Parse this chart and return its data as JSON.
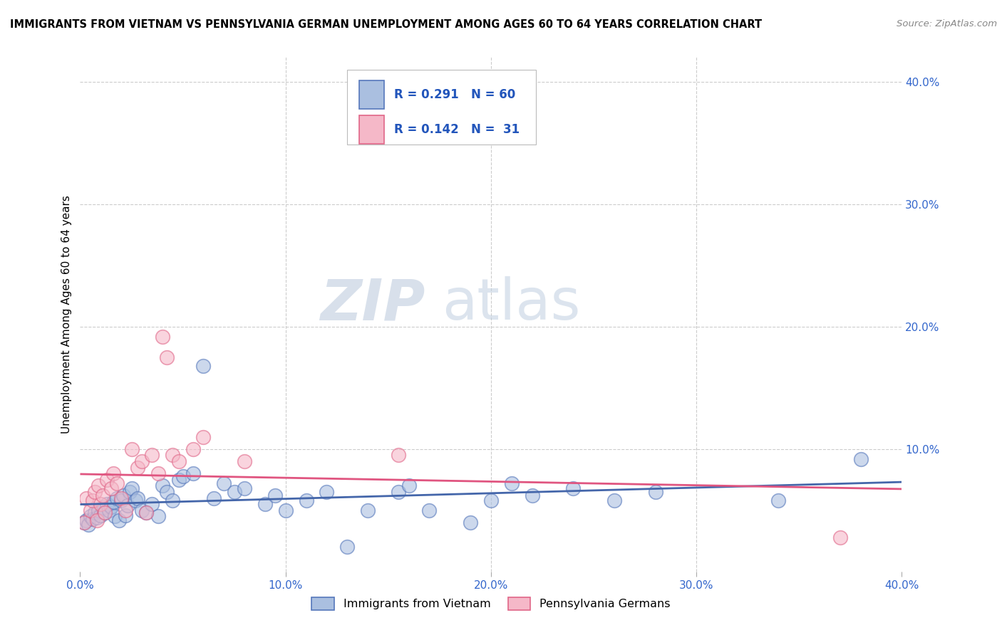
{
  "title": "IMMIGRANTS FROM VIETNAM VS PENNSYLVANIA GERMAN UNEMPLOYMENT AMONG AGES 60 TO 64 YEARS CORRELATION CHART",
  "source": "Source: ZipAtlas.com",
  "ylabel": "Unemployment Among Ages 60 to 64 years",
  "xlim": [
    0.0,
    0.4
  ],
  "ylim": [
    0.0,
    0.42
  ],
  "xticks": [
    0.0,
    0.1,
    0.2,
    0.3,
    0.4
  ],
  "yticks": [
    0.1,
    0.2,
    0.3,
    0.4
  ],
  "xtick_labels": [
    "0.0%",
    "10.0%",
    "20.0%",
    "30.0%",
    "40.0%"
  ],
  "ytick_labels": [
    "10.0%",
    "20.0%",
    "30.0%",
    "40.0%"
  ],
  "background_color": "#ffffff",
  "grid_color": "#cccccc",
  "blue_fill": "#aabfe0",
  "blue_edge": "#5577bb",
  "pink_fill": "#f5b8c8",
  "pink_edge": "#e06688",
  "blue_line_color": "#4466aa",
  "pink_line_color": "#e05580",
  "watermark_zip": "ZIP",
  "watermark_atlas": "atlas",
  "legend_label1": "Immigrants from Vietnam",
  "legend_label2": "Pennsylvania Germans",
  "blue_scatter_x": [
    0.002,
    0.003,
    0.004,
    0.005,
    0.006,
    0.007,
    0.008,
    0.009,
    0.01,
    0.011,
    0.012,
    0.013,
    0.014,
    0.015,
    0.016,
    0.017,
    0.018,
    0.019,
    0.02,
    0.021,
    0.022,
    0.023,
    0.024,
    0.025,
    0.027,
    0.028,
    0.03,
    0.032,
    0.035,
    0.038,
    0.04,
    0.042,
    0.045,
    0.048,
    0.05,
    0.055,
    0.06,
    0.065,
    0.07,
    0.075,
    0.08,
    0.09,
    0.095,
    0.1,
    0.11,
    0.12,
    0.13,
    0.14,
    0.155,
    0.16,
    0.17,
    0.19,
    0.2,
    0.21,
    0.22,
    0.24,
    0.26,
    0.28,
    0.34,
    0.38
  ],
  "blue_scatter_y": [
    0.04,
    0.042,
    0.038,
    0.045,
    0.043,
    0.048,
    0.044,
    0.05,
    0.046,
    0.052,
    0.048,
    0.055,
    0.05,
    0.053,
    0.057,
    0.045,
    0.06,
    0.042,
    0.058,
    0.062,
    0.046,
    0.054,
    0.065,
    0.068,
    0.058,
    0.06,
    0.05,
    0.048,
    0.055,
    0.045,
    0.07,
    0.065,
    0.058,
    0.075,
    0.078,
    0.08,
    0.168,
    0.06,
    0.072,
    0.065,
    0.068,
    0.055,
    0.062,
    0.05,
    0.058,
    0.065,
    0.02,
    0.05,
    0.065,
    0.07,
    0.05,
    0.04,
    0.058,
    0.072,
    0.062,
    0.068,
    0.058,
    0.065,
    0.058,
    0.092
  ],
  "pink_scatter_x": [
    0.002,
    0.003,
    0.005,
    0.006,
    0.007,
    0.008,
    0.009,
    0.01,
    0.011,
    0.012,
    0.013,
    0.015,
    0.016,
    0.018,
    0.02,
    0.022,
    0.025,
    0.028,
    0.03,
    0.032,
    0.035,
    0.038,
    0.04,
    0.042,
    0.045,
    0.048,
    0.055,
    0.06,
    0.08,
    0.155,
    0.37
  ],
  "pink_scatter_y": [
    0.04,
    0.06,
    0.05,
    0.058,
    0.065,
    0.042,
    0.07,
    0.055,
    0.062,
    0.048,
    0.075,
    0.068,
    0.08,
    0.072,
    0.06,
    0.05,
    0.1,
    0.085,
    0.09,
    0.048,
    0.095,
    0.08,
    0.192,
    0.175,
    0.095,
    0.09,
    0.1,
    0.11,
    0.09,
    0.095,
    0.028
  ]
}
